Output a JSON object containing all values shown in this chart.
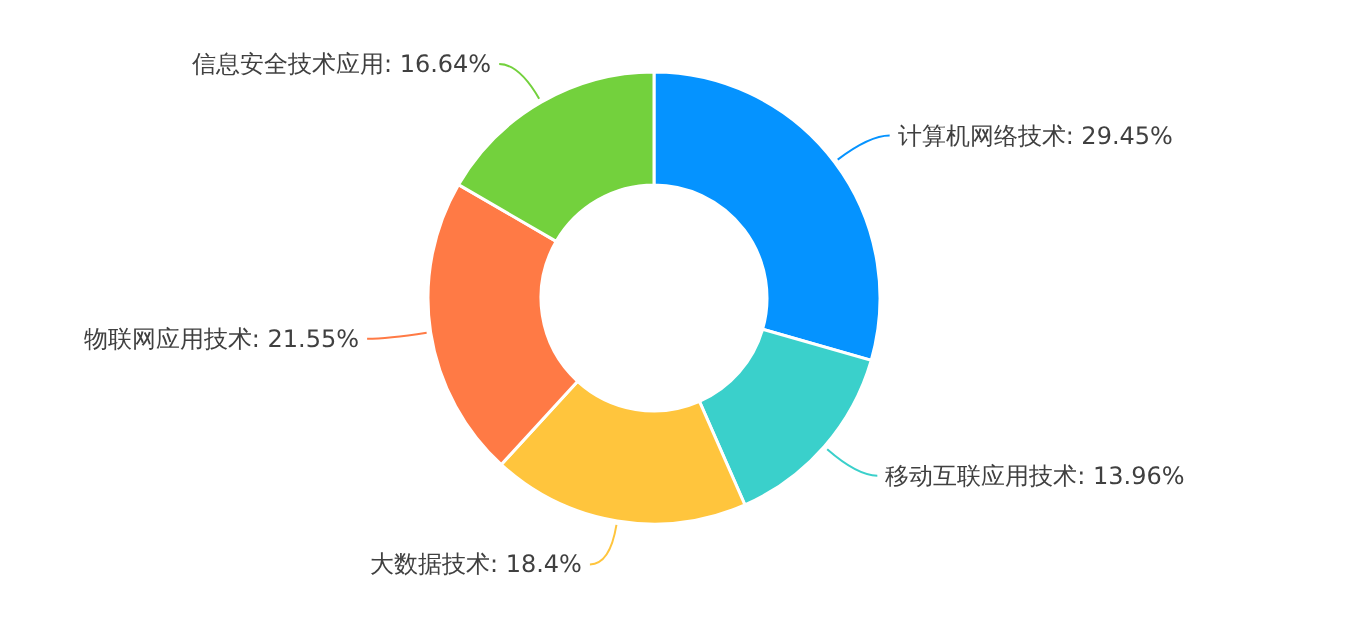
{
  "chart_data": {
    "type": "donut",
    "categories": [
      "计算机网络技术",
      "移动互联应用技术",
      "大数据技术",
      "物联网应用技术",
      "信息安全技术应用"
    ],
    "values": [
      29.45,
      13.96,
      18.4,
      21.55,
      16.64
    ],
    "value_labels": [
      ": 29.45%",
      ": 13.96%",
      ": 18.4%",
      ": 21.55%",
      ": 16.64%"
    ],
    "colors": [
      "#0593ff",
      "#3ad0cb",
      "#ffc53d",
      "#ff7a45",
      "#73d13d"
    ]
  }
}
